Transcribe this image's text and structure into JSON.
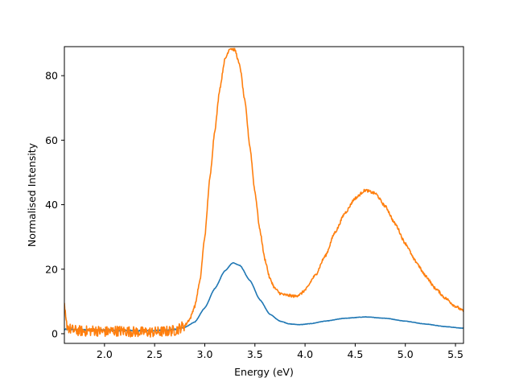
{
  "chart_data": {
    "type": "line",
    "title": "",
    "xlabel": "Energy (eV)",
    "ylabel": "Normalised Intensity",
    "xlim": [
      1.6,
      5.58
    ],
    "ylim": [
      -3,
      89
    ],
    "grid": false,
    "legend": "none",
    "x_ticks": [
      "2.0",
      "2.5",
      "3.0",
      "3.5",
      "4.0",
      "4.5",
      "5.0",
      "5.5"
    ],
    "x_tick_values": [
      2.0,
      2.5,
      3.0,
      3.5,
      4.0,
      4.5,
      5.0,
      5.5
    ],
    "y_ticks": [
      "0",
      "20",
      "40",
      "60",
      "80"
    ],
    "y_tick_values": [
      0,
      20,
      40,
      60,
      80
    ],
    "series": [
      {
        "color": "#1f77b4",
        "noise": 0.15,
        "x": [
          1.6,
          1.8,
          2.0,
          2.2,
          2.4,
          2.6,
          2.7,
          2.8,
          2.9,
          3.0,
          3.1,
          3.2,
          3.28,
          3.35,
          3.45,
          3.55,
          3.65,
          3.75,
          3.85,
          3.95,
          4.05,
          4.2,
          4.4,
          4.6,
          4.8,
          5.0,
          5.2,
          5.4,
          5.58
        ],
        "y": [
          1.3,
          1.2,
          1.1,
          1.0,
          0.9,
          1.0,
          1.3,
          2.0,
          3.6,
          8.0,
          14.0,
          19.5,
          22.0,
          21.2,
          16.5,
          10.5,
          6.0,
          3.9,
          3.0,
          2.8,
          3.1,
          3.9,
          4.8,
          5.2,
          4.8,
          3.9,
          3.0,
          2.2,
          1.7
        ]
      },
      {
        "color": "#ff7f0e",
        "noise": 1.2,
        "x": [
          1.6,
          1.62,
          1.65,
          1.7,
          1.8,
          1.9,
          2.0,
          2.1,
          2.2,
          2.3,
          2.4,
          2.5,
          2.6,
          2.7,
          2.8,
          2.85,
          2.9,
          2.95,
          3.0,
          3.05,
          3.1,
          3.15,
          3.2,
          3.25,
          3.3,
          3.35,
          3.4,
          3.45,
          3.5,
          3.55,
          3.6,
          3.65,
          3.7,
          3.75,
          3.8,
          3.85,
          3.9,
          3.95,
          4.0,
          4.1,
          4.2,
          4.3,
          4.4,
          4.5,
          4.6,
          4.7,
          4.8,
          4.9,
          5.0,
          5.1,
          5.2,
          5.3,
          5.4,
          5.5,
          5.58
        ],
        "y": [
          8.0,
          3.0,
          1.5,
          1.0,
          0.8,
          1.0,
          0.6,
          0.9,
          0.8,
          0.6,
          0.5,
          0.5,
          0.7,
          1.0,
          2.5,
          4.5,
          8.5,
          16.0,
          30.0,
          48.0,
          63.0,
          76.0,
          85.0,
          88.5,
          88.0,
          83.0,
          72.0,
          58.0,
          44.0,
          32.0,
          23.0,
          17.0,
          14.0,
          12.5,
          12.0,
          11.8,
          11.6,
          12.2,
          13.5,
          18.0,
          24.0,
          31.5,
          37.5,
          42.0,
          44.5,
          43.5,
          39.5,
          34.0,
          28.0,
          22.5,
          18.0,
          14.0,
          11.0,
          8.5,
          7.0
        ]
      }
    ]
  }
}
